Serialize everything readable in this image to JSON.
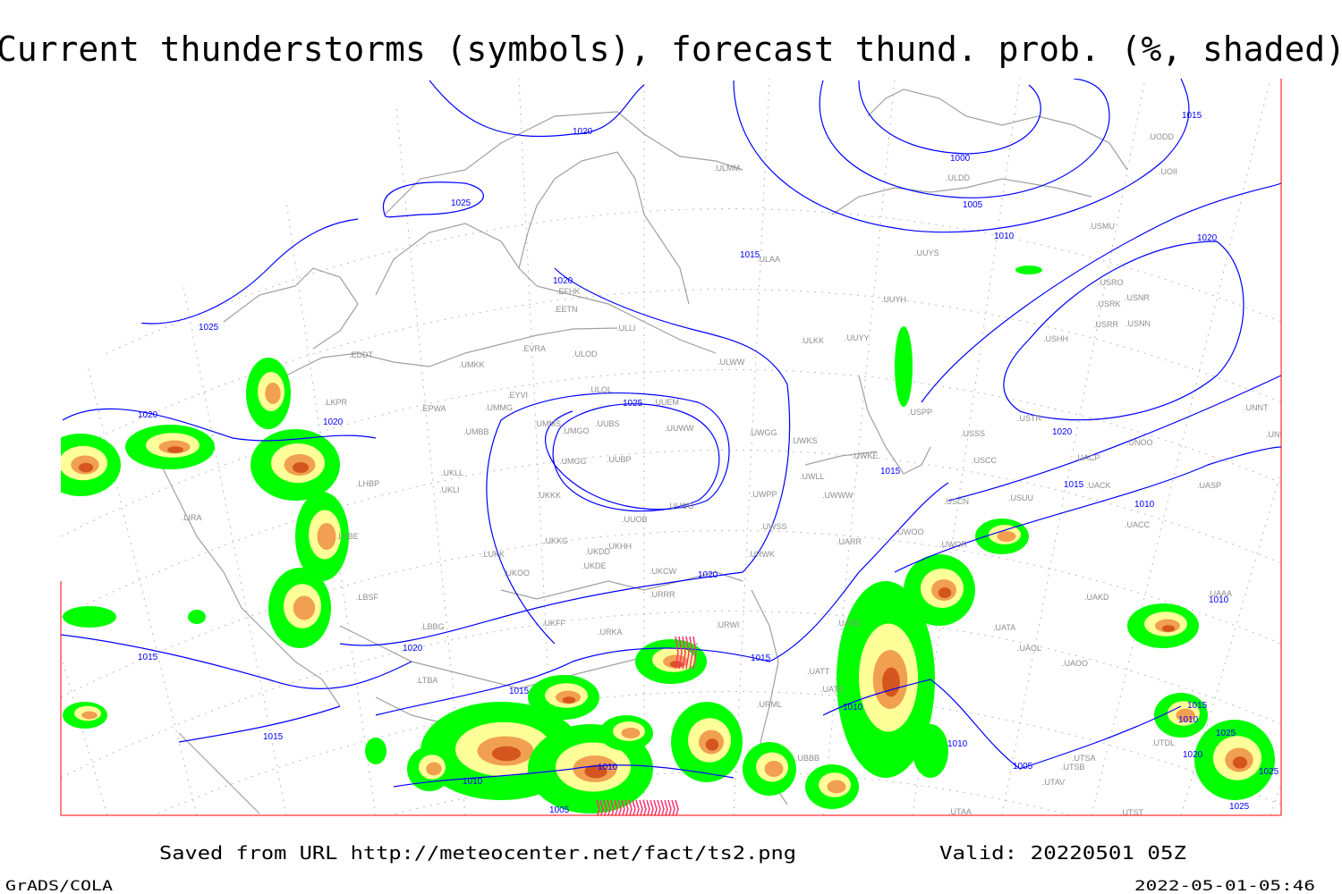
{
  "title": "Current thunderstorms (symbols), forecast thund. prob. (%, shaded)",
  "footer": {
    "source": "Saved from URL http://meteocenter.net/fact/ts2.png",
    "valid": "Valid: 20220501 05Z",
    "software": "GrADS/COLA",
    "timestamp": "2022-05-01-05:46"
  },
  "colors": {
    "isobar": "#0000ff",
    "coastline": "#a0a0a0",
    "frame": "#ff0000",
    "prob_low": "#00ff00",
    "prob_mid": "#ffff99",
    "prob_high": "#f0a050",
    "prob_max": "#d4561e",
    "storm_symbol": "#ff3370"
  },
  "stations": [
    "EDDT",
    "UMKK",
    "EVRA",
    "ULOD",
    "ULOL",
    "UUEM",
    "EYVI",
    "EPWA",
    "UMMG",
    "UMMS",
    "UUBS",
    "UMGO",
    "UUWW",
    "UMBB",
    "UUBP",
    "UMGG",
    "UKLL",
    "UKLI",
    "UKKK",
    "UUOO",
    "UUOB",
    "LHBP",
    "LKPR",
    "LIRA",
    "LYBE",
    "LUKK",
    "UKHH",
    "UKKG",
    "UKDD",
    "UKDE",
    "UKOO",
    "UKCW",
    "URRR",
    "LBSF",
    "LBBG",
    "UKFF",
    "URKA",
    "UWPP",
    "UWWW",
    "UWLL",
    "UWKE",
    "UWKS",
    "UWGG",
    "UWSS",
    "URWK",
    "UARR",
    "UWOO",
    "UWOR",
    "USCN",
    "USUU",
    "USCC",
    "USSS",
    "USPP",
    "USTR",
    "UACP",
    "UACK",
    "UNOO",
    "UNNT",
    "UNBB",
    "UASP",
    "UACC",
    "UAKD",
    "UAAA",
    "UATA",
    "UAOL",
    "UAOO",
    "UATG",
    "UATE",
    "UATT",
    "URML",
    "UBBB",
    "URWI",
    "ULWW",
    "ULKK",
    "UUYY",
    "UUYH",
    "UUYS",
    "ULAA",
    "ULLI",
    "EETN",
    "EFHK",
    "ULMM",
    "ULDD",
    "USMU",
    "UOII",
    "UODD",
    "USRO",
    "USNR",
    "USRK",
    "USRR",
    "USNN",
    "USHH",
    "UTSA",
    "UTSB",
    "UTAV",
    "UTAA",
    "UTST",
    "UTDL",
    "LTBA"
  ],
  "isobar_labels": [
    "1020",
    "1025",
    "1000",
    "1005",
    "1010",
    "1015",
    "1020",
    "1015",
    "1020",
    "1025",
    "1025",
    "1020",
    "1020",
    "1015",
    "1015",
    "1020",
    "1010",
    "1020",
    "1010",
    "1015",
    "1020",
    "1015",
    "1015",
    "1010",
    "1015",
    "1010",
    "1010",
    "1010",
    "1005",
    "1005",
    "1015",
    "1010",
    "1025",
    "1020",
    "1025",
    "1025"
  ]
}
